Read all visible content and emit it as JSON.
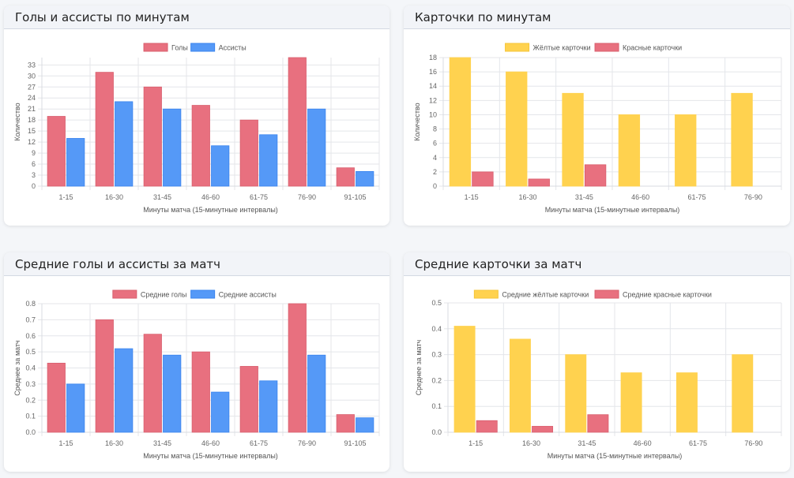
{
  "colors": {
    "goals": "#e8707f",
    "goals_border": "#d95f6e",
    "assists": "#5599f7",
    "assists_border": "#3a84ee",
    "yellow": "#ffd24f",
    "red": "#e8707f",
    "grid": "#e4e6ea"
  },
  "cards": [
    {
      "title": "Голы и ассисты по минутам"
    },
    {
      "title": "Карточки по минутам"
    },
    {
      "title": "Средние голы и ассисты за матч"
    },
    {
      "title": "Средние карточки за матч"
    }
  ],
  "chart_data": [
    {
      "type": "bar",
      "title": "Голы и ассисты по минутам",
      "categories": [
        "1-15",
        "16-30",
        "31-45",
        "46-60",
        "61-75",
        "76-90",
        "91-105"
      ],
      "series": [
        {
          "name": "Голы",
          "values": [
            19,
            31,
            27,
            22,
            18,
            35,
            5
          ],
          "color_key": "goals"
        },
        {
          "name": "Ассисты",
          "values": [
            13,
            23,
            21,
            11,
            14,
            21,
            4
          ],
          "color_key": "assists"
        }
      ],
      "xlabel": "Минуты матча (15-минутные интервалы)",
      "ylabel": "Количество",
      "ylim": [
        0,
        35
      ],
      "yticks": [
        "0",
        "3",
        "6",
        "9",
        "12",
        "15",
        "18",
        "21",
        "24",
        "27",
        "30",
        "33"
      ],
      "ytick_values": [
        0,
        3,
        6,
        9,
        12,
        15,
        18,
        21,
        24,
        27,
        30,
        33
      ],
      "grid": true,
      "legend": "top-center"
    },
    {
      "type": "bar",
      "title": "Карточки по минутам",
      "categories": [
        "1-15",
        "16-30",
        "31-45",
        "46-60",
        "61-75",
        "76-90"
      ],
      "series": [
        {
          "name": "Жёлтые карточки",
          "values": [
            18,
            16,
            13,
            10,
            10,
            13
          ],
          "color_key": "yellow"
        },
        {
          "name": "Красные карточки",
          "values": [
            2,
            1,
            3,
            0,
            0,
            0
          ],
          "color_key": "red"
        }
      ],
      "xlabel": "Минуты матча (15-минутные интервалы)",
      "ylabel": "Количество",
      "ylim": [
        0,
        18
      ],
      "yticks": [
        "0",
        "2",
        "4",
        "6",
        "8",
        "10",
        "12",
        "14",
        "16",
        "18"
      ],
      "ytick_values": [
        0,
        2,
        4,
        6,
        8,
        10,
        12,
        14,
        16,
        18
      ],
      "grid": true,
      "legend": "top-center"
    },
    {
      "type": "bar",
      "title": "Средние голы и ассисты за матч",
      "categories": [
        "1-15",
        "16-30",
        "31-45",
        "46-60",
        "61-75",
        "76-90",
        "91-105"
      ],
      "series": [
        {
          "name": "Средние голы",
          "values": [
            0.43,
            0.7,
            0.61,
            0.5,
            0.41,
            0.8,
            0.11
          ],
          "color_key": "goals"
        },
        {
          "name": "Средние ассисты",
          "values": [
            0.3,
            0.52,
            0.48,
            0.25,
            0.32,
            0.48,
            0.09
          ],
          "color_key": "assists"
        }
      ],
      "xlabel": "Минуты матча (15-минутные интервалы)",
      "ylabel": "Среднее за матч",
      "ylim": [
        0,
        0.8
      ],
      "yticks": [
        "0.0",
        "0.1",
        "0.2",
        "0.3",
        "0.4",
        "0.5",
        "0.6",
        "0.7",
        "0.8"
      ],
      "ytick_values": [
        0,
        0.1,
        0.2,
        0.3,
        0.4,
        0.5,
        0.6,
        0.7,
        0.8
      ],
      "grid": true,
      "legend": "top-center"
    },
    {
      "type": "bar",
      "title": "Средние карточки за матч",
      "categories": [
        "1-15",
        "16-30",
        "31-45",
        "46-60",
        "61-75",
        "76-90"
      ],
      "series": [
        {
          "name": "Средние жёлтые карточки",
          "values": [
            0.41,
            0.36,
            0.3,
            0.23,
            0.23,
            0.3
          ],
          "color_key": "yellow"
        },
        {
          "name": "Средние красные карточки",
          "values": [
            0.045,
            0.023,
            0.068,
            0,
            0,
            0
          ],
          "color_key": "red"
        }
      ],
      "xlabel": "Минуты матча (15-минутные интервалы)",
      "ylabel": "Среднее за матч",
      "ylim": [
        0,
        0.5
      ],
      "yticks": [
        "0.0",
        "0.1",
        "0.2",
        "0.3",
        "0.4",
        "0.5"
      ],
      "ytick_values": [
        0,
        0.1,
        0.2,
        0.3,
        0.4,
        0.5
      ],
      "grid": true,
      "legend": "top-center"
    }
  ]
}
